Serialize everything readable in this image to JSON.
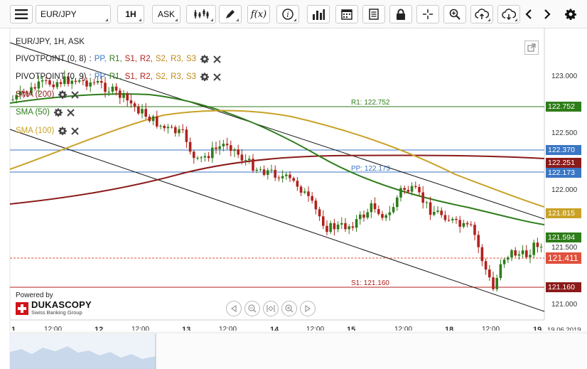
{
  "toolbar": {
    "symbol": "EUR/JPY",
    "timeframe": "1H",
    "side": "ASK"
  },
  "legend": {
    "title": "EUR/JPY, 1H, ASK",
    "pivot1": {
      "name": "PIVOTPOINT (0, 8)",
      "colon": ":"
    },
    "pivot2": {
      "name": "PIVOTPOINT (0, 9)",
      "colon": ":"
    },
    "pivot_parts": [
      "PP,",
      "R1,",
      "S1,",
      "R2,",
      "S2,",
      "R3,",
      "S3"
    ],
    "sma200": "SMA (200)",
    "sma50": "SMA (50)",
    "sma100": "SMA (100)"
  },
  "levels": {
    "r1_label": "R1: 122.752",
    "pp_label": "PP: 122.173",
    "s1_label": "S1: 121.160"
  },
  "price_axis": {
    "ticks": [
      "123.000",
      "122.500",
      "122.000",
      "121.500",
      "121.000"
    ],
    "badges": {
      "r1": "122.752",
      "blue": "122.370",
      "sma200": "122.251",
      "pp": "122.173",
      "sma100": "121.815",
      "sma50": "121.594",
      "last": "121.411",
      "s1": "121.160"
    }
  },
  "time_axis": {
    "labels": [
      "1",
      "12:00",
      "12",
      "12:00",
      "13",
      "12:00",
      "14",
      "12:00",
      "15",
      "12:00",
      "18",
      "12:00",
      "19"
    ],
    "date": "19.06.2019"
  },
  "powered": {
    "by": "Powered by",
    "brand": "DUKASCOPY",
    "sub": "Swiss Banking Group"
  },
  "colors": {
    "sma200": "#8b1a1a",
    "sma50": "#2e7d1a",
    "sma100": "#c9a227",
    "blue_line": "#3a76c4",
    "up_candle": "#2e7d1a",
    "down_candle": "#b0221c",
    "last_price": "#e0503c"
  }
}
